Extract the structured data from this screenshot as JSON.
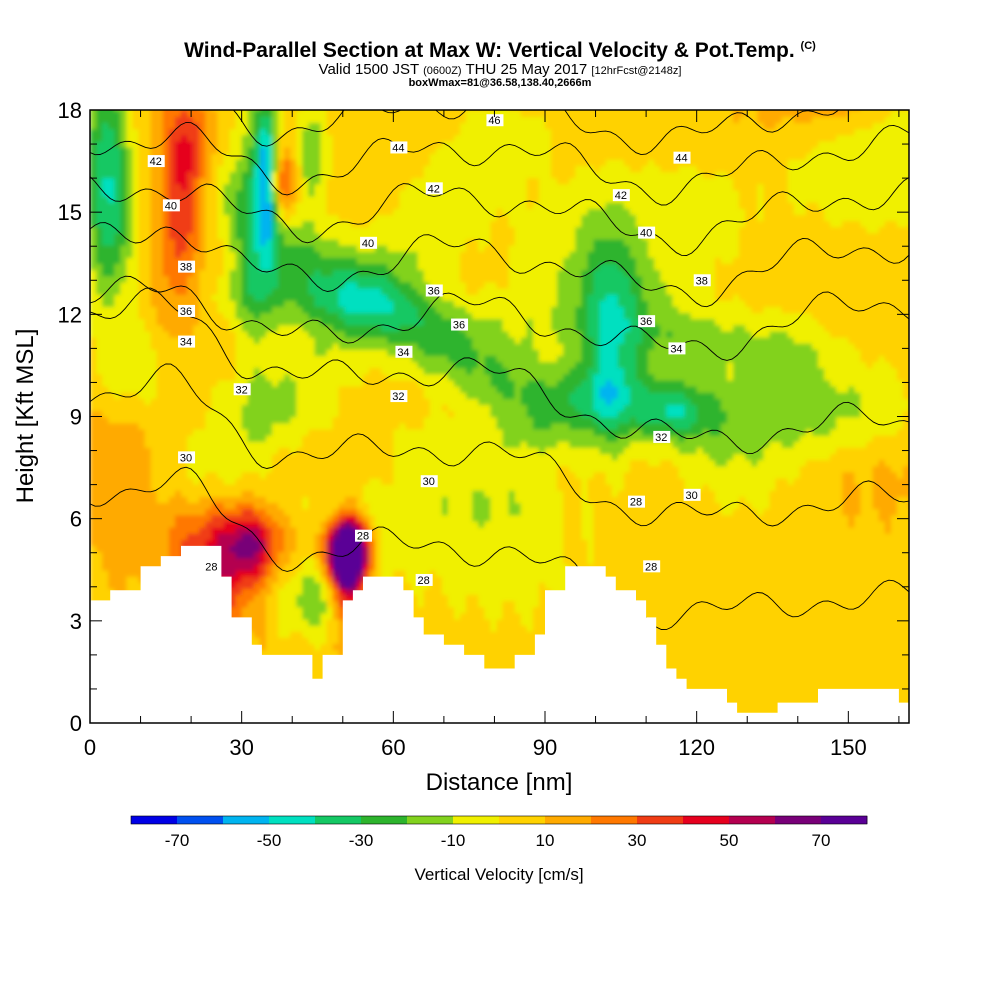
{
  "header": {
    "title": "Wind-Parallel Section at Max W: Vertical Velocity & Pot.Temp.",
    "title_suffix": "(C)",
    "valid_prefix": "Valid 1500 JST",
    "valid_utc": "(0600Z)",
    "valid_date": "THU 25 May 2017",
    "forecast_info": "[12hrFcst@2148z]",
    "box_info": "boxWmax=81@36.58,138.40,2666m"
  },
  "chart_data": {
    "type": "heatmap",
    "xlabel": "Distance [nm]",
    "ylabel": "Height [Kft MSL]",
    "xlim": [
      0,
      162
    ],
    "ylim": [
      0,
      18
    ],
    "x_ticks": [
      "0",
      "30",
      "60",
      "90",
      "120",
      "150"
    ],
    "y_ticks": [
      "0",
      "3",
      "6",
      "9",
      "12",
      "15",
      "18"
    ],
    "colorbar": {
      "label": "Vertical Velocity [cm/s]",
      "tick_labels": [
        "-70",
        "-50",
        "-30",
        "-10",
        "10",
        "30",
        "50",
        "70"
      ],
      "bounds": [
        -80,
        -70,
        -60,
        -50,
        -40,
        -30,
        -20,
        -10,
        0,
        10,
        20,
        30,
        40,
        50,
        60,
        70,
        80
      ],
      "colors": [
        "#0000e6",
        "#0050f0",
        "#00b4f0",
        "#00e0c0",
        "#14c864",
        "#2db42d",
        "#82d21e",
        "#f0f000",
        "#ffd200",
        "#ffaa00",
        "#ff7800",
        "#f03c14",
        "#e6001e",
        "#b40050",
        "#780078",
        "#5a0096"
      ]
    },
    "terrain": [
      [
        0,
        3.6
      ],
      [
        4,
        3.6
      ],
      [
        4,
        3.9
      ],
      [
        10,
        3.9
      ],
      [
        10,
        4.6
      ],
      [
        14,
        4.6
      ],
      [
        14,
        4.9
      ],
      [
        18,
        4.9
      ],
      [
        18,
        5.2
      ],
      [
        26,
        5.2
      ],
      [
        26,
        4.3
      ],
      [
        28,
        4.3
      ],
      [
        28,
        3.1
      ],
      [
        32,
        3.1
      ],
      [
        32,
        2.3
      ],
      [
        34,
        2.3
      ],
      [
        34,
        2.0
      ],
      [
        44,
        2.0
      ],
      [
        44,
        1.3
      ],
      [
        46,
        1.3
      ],
      [
        46,
        2.0
      ],
      [
        50,
        2.0
      ],
      [
        50,
        3.6
      ],
      [
        52,
        3.6
      ],
      [
        52,
        3.9
      ],
      [
        54,
        3.9
      ],
      [
        54,
        4.3
      ],
      [
        62,
        4.3
      ],
      [
        62,
        3.9
      ],
      [
        64,
        3.9
      ],
      [
        64,
        3.1
      ],
      [
        66,
        3.1
      ],
      [
        66,
        2.6
      ],
      [
        70,
        2.6
      ],
      [
        70,
        2.3
      ],
      [
        74,
        2.3
      ],
      [
        74,
        2.0
      ],
      [
        78,
        2.0
      ],
      [
        78,
        1.6
      ],
      [
        84,
        1.6
      ],
      [
        84,
        2.0
      ],
      [
        88,
        2.0
      ],
      [
        88,
        2.6
      ],
      [
        90,
        2.6
      ],
      [
        90,
        3.9
      ],
      [
        94,
        3.9
      ],
      [
        94,
        4.6
      ],
      [
        102,
        4.6
      ],
      [
        102,
        4.3
      ],
      [
        104,
        4.3
      ],
      [
        104,
        3.9
      ],
      [
        108,
        3.9
      ],
      [
        108,
        3.6
      ],
      [
        110,
        3.6
      ],
      [
        110,
        3.1
      ],
      [
        112,
        3.1
      ],
      [
        112,
        2.3
      ],
      [
        114,
        2.3
      ],
      [
        114,
        1.6
      ],
      [
        116,
        1.6
      ],
      [
        116,
        1.3
      ],
      [
        118,
        1.3
      ],
      [
        118,
        1.0
      ],
      [
        126,
        1.0
      ],
      [
        126,
        0.6
      ],
      [
        128,
        0.6
      ],
      [
        128,
        0.3
      ],
      [
        136,
        0.3
      ],
      [
        136,
        0.6
      ],
      [
        144,
        0.6
      ],
      [
        144,
        1.0
      ],
      [
        150,
        1.0
      ],
      [
        150,
        1.0
      ],
      [
        160,
        1.0
      ],
      [
        160,
        0.6
      ],
      [
        162,
        0.6
      ]
    ],
    "contour_labels": [
      {
        "text": "46",
        "x": 80,
        "y": 17.7
      },
      {
        "text": "44",
        "x": 61,
        "y": 16.9
      },
      {
        "text": "44",
        "x": 117,
        "y": 16.6
      },
      {
        "text": "42",
        "x": 13,
        "y": 16.5
      },
      {
        "text": "42",
        "x": 68,
        "y": 15.7
      },
      {
        "text": "42",
        "x": 105,
        "y": 15.5
      },
      {
        "text": "40",
        "x": 16,
        "y": 15.2
      },
      {
        "text": "40",
        "x": 55,
        "y": 14.1
      },
      {
        "text": "40",
        "x": 110,
        "y": 14.4
      },
      {
        "text": "38",
        "x": 19,
        "y": 13.4
      },
      {
        "text": "38",
        "x": 121,
        "y": 13.0
      },
      {
        "text": "36",
        "x": 68,
        "y": 12.7
      },
      {
        "text": "36",
        "x": 19,
        "y": 12.1
      },
      {
        "text": "36",
        "x": 73,
        "y": 11.7
      },
      {
        "text": "36",
        "x": 110,
        "y": 11.8
      },
      {
        "text": "34",
        "x": 19,
        "y": 11.2
      },
      {
        "text": "34",
        "x": 62,
        "y": 10.9
      },
      {
        "text": "34",
        "x": 116,
        "y": 11.0
      },
      {
        "text": "32",
        "x": 30,
        "y": 9.8
      },
      {
        "text": "32",
        "x": 61,
        "y": 9.6
      },
      {
        "text": "32",
        "x": 113,
        "y": 8.4
      },
      {
        "text": "30",
        "x": 19,
        "y": 7.8
      },
      {
        "text": "30",
        "x": 67,
        "y": 7.1
      },
      {
        "text": "30",
        "x": 119,
        "y": 6.7
      },
      {
        "text": "28",
        "x": 108,
        "y": 6.5
      },
      {
        "text": "28",
        "x": 54,
        "y": 5.5
      },
      {
        "text": "28",
        "x": 24,
        "y": 4.6
      },
      {
        "text": "28",
        "x": 66,
        "y": 4.2
      },
      {
        "text": "28",
        "x": 111,
        "y": 4.6
      }
    ],
    "isentrope_levels": [
      28,
      29,
      30,
      31,
      32,
      33,
      34,
      35,
      36,
      37,
      38,
      39,
      40,
      41,
      42,
      43,
      44,
      45,
      46,
      47
    ]
  }
}
